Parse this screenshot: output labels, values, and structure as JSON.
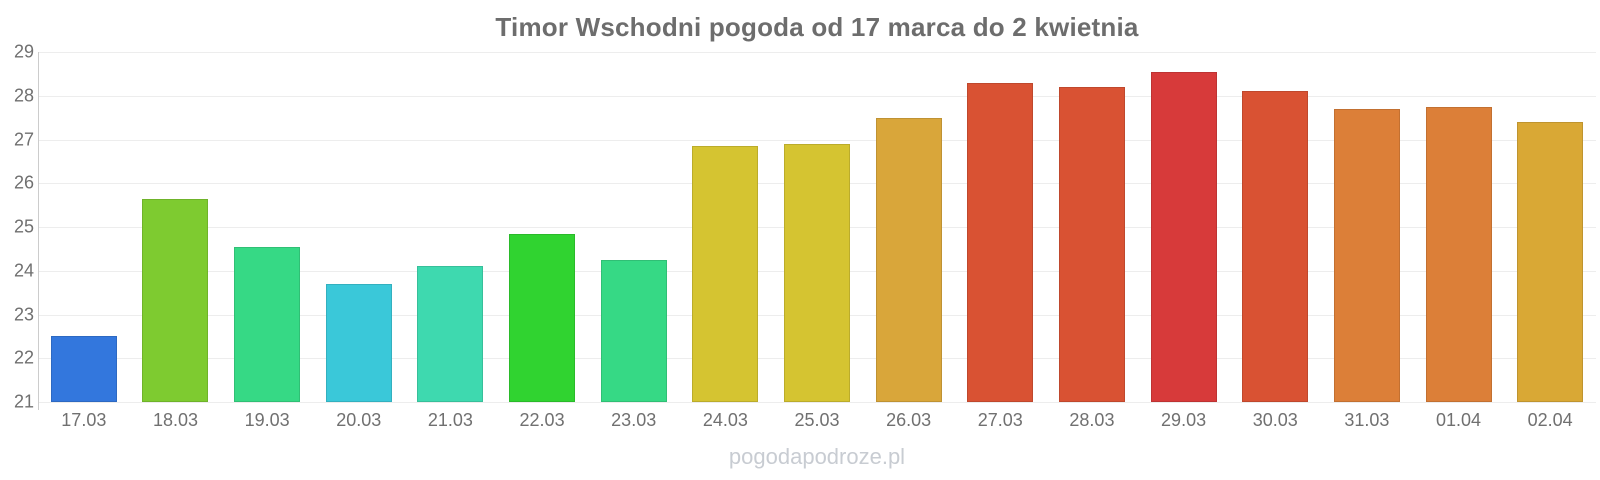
{
  "chart": {
    "watermark": "pogodapodroze.pl"
  },
  "chart_data": {
    "type": "bar",
    "title": "Timor Wschodni pogoda od 17 marca do 2 kwietnia",
    "categories": [
      "17.03",
      "18.03",
      "19.03",
      "20.03",
      "21.03",
      "22.03",
      "23.03",
      "24.03",
      "25.03",
      "26.03",
      "27.03",
      "28.03",
      "29.03",
      "30.03",
      "31.03",
      "01.04",
      "02.04"
    ],
    "values": [
      22.5,
      25.65,
      24.55,
      23.7,
      24.1,
      24.85,
      24.25,
      26.85,
      26.9,
      27.5,
      28.3,
      28.2,
      28.55,
      28.1,
      27.7,
      27.75,
      27.4
    ],
    "bar_colors": [
      "#3377dd",
      "#7ecb30",
      "#36d985",
      "#3ac8d9",
      "#3ed9af",
      "#30d330",
      "#36d985",
      "#d5c431",
      "#d5c431",
      "#d9a63a",
      "#d95233",
      "#d95233",
      "#d73a3a",
      "#d95233",
      "#dc7f38",
      "#dc7f38",
      "#d9a835"
    ],
    "xlabel": "",
    "ylabel": "",
    "ylim": [
      21,
      29
    ],
    "yticks": [
      21,
      22,
      23,
      24,
      25,
      26,
      27,
      28,
      29
    ],
    "grid": true,
    "legend": false,
    "units": "°C"
  },
  "colors": {
    "title": "#6d6d6d",
    "axis_label": "#707070",
    "gridline": "#ededed",
    "axis_line": "#cccccc",
    "watermark": "#c8ccd2",
    "background": "#ffffff"
  }
}
